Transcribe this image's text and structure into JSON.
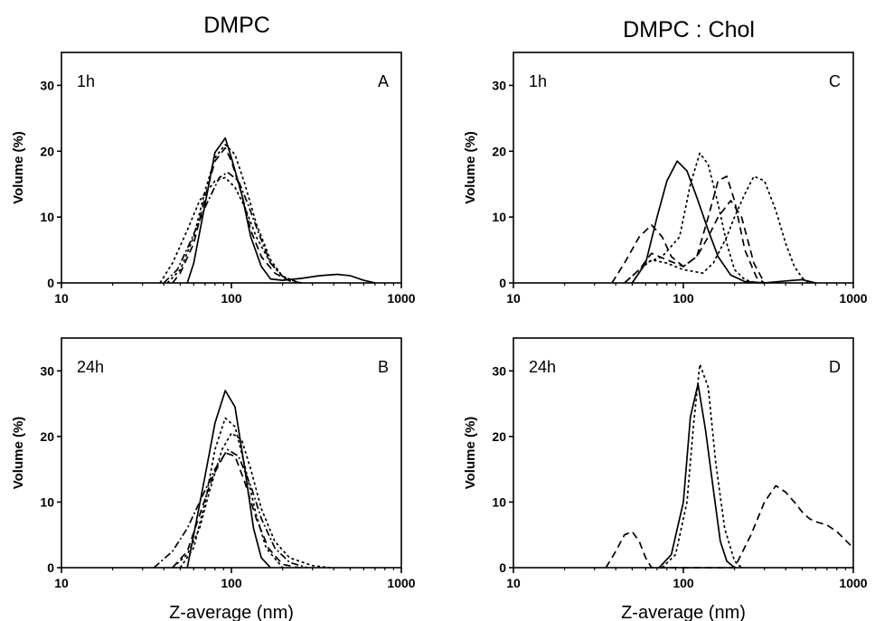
{
  "titles": {
    "left": "DMPC",
    "right": "DMPC : Chol"
  },
  "chart_data": [
    {
      "type": "line",
      "panel": "A",
      "time": "1h",
      "ylabel": "Volume (%)",
      "xlabel": "",
      "xscale": "log",
      "xlim": [
        10,
        1000
      ],
      "ylim": [
        0,
        35
      ],
      "xticks": [
        "10",
        "100",
        "1000"
      ],
      "yticks": [
        "0",
        "10",
        "20",
        "30"
      ],
      "series": [
        {
          "style": "solid",
          "x": [
            55,
            60,
            70,
            80,
            92,
            100,
            115,
            130,
            150,
            170,
            200,
            260,
            330,
            420,
            500,
            600,
            700
          ],
          "y": [
            0,
            3,
            12,
            19.8,
            22,
            19,
            13.5,
            7,
            2.5,
            0.6,
            0.4,
            0.7,
            1.1,
            1.3,
            1.1,
            0.4,
            0
          ]
        },
        {
          "style": "dash",
          "x": [
            45,
            50,
            60,
            70,
            80,
            92,
            100,
            115,
            130,
            150,
            180,
            220,
            260
          ],
          "y": [
            0,
            1.5,
            6,
            13,
            18.5,
            20.5,
            18.5,
            13.5,
            8,
            4,
            1.5,
            0.3,
            0
          ]
        },
        {
          "style": "dot",
          "x": [
            38,
            45,
            55,
            65,
            80,
            92,
            105,
            120,
            140,
            170,
            200,
            250
          ],
          "y": [
            0,
            3,
            8,
            12.5,
            15.5,
            16,
            14.5,
            11.5,
            7,
            3,
            1,
            0
          ]
        },
        {
          "style": "dashdot",
          "x": [
            40,
            48,
            58,
            70,
            85,
            95,
            110,
            125,
            145,
            170,
            200,
            250
          ],
          "y": [
            0,
            2,
            6.5,
            11.5,
            16,
            16.8,
            15.5,
            12,
            7.5,
            3,
            1,
            0
          ]
        },
        {
          "style": "dot",
          "x": [
            42,
            50,
            60,
            70,
            80,
            92,
            105,
            120,
            140,
            170,
            200,
            250
          ],
          "y": [
            0,
            2,
            7,
            14,
            19,
            21,
            19.5,
            15,
            9,
            3.5,
            1,
            0
          ]
        }
      ]
    },
    {
      "type": "line",
      "panel": "B",
      "time": "24h",
      "ylabel": "Volume (%)",
      "xlabel": "Z-average (nm)",
      "xscale": "log",
      "xlim": [
        10,
        1000
      ],
      "ylim": [
        0,
        35
      ],
      "xticks": [
        "10",
        "100",
        "1000"
      ],
      "yticks": [
        "0",
        "10",
        "20",
        "30"
      ],
      "series": [
        {
          "style": "solid",
          "x": [
            55,
            60,
            70,
            80,
            92,
            105,
            120,
            135,
            150,
            170
          ],
          "y": [
            0,
            5,
            14,
            22,
            27,
            24.5,
            15,
            6,
            1.5,
            0
          ]
        },
        {
          "style": "dot",
          "x": [
            50,
            60,
            70,
            80,
            92,
            105,
            120,
            140,
            160,
            200
          ],
          "y": [
            0,
            3,
            10,
            18,
            22.8,
            21.5,
            15.5,
            8,
            3,
            0
          ]
        },
        {
          "style": "dash",
          "x": [
            45,
            55,
            65,
            78,
            92,
            105,
            120,
            140,
            165,
            200,
            250
          ],
          "y": [
            0,
            2.5,
            8,
            14,
            17.5,
            17,
            13,
            7.5,
            3,
            0.5,
            0
          ]
        },
        {
          "style": "dashdot",
          "x": [
            35,
            45,
            55,
            65,
            80,
            95,
            110,
            130,
            150,
            180,
            220,
            280
          ],
          "y": [
            0,
            2.5,
            6,
            10,
            15,
            18,
            17,
            12.5,
            7.5,
            3,
            0.8,
            0
          ]
        },
        {
          "style": "dot",
          "x": [
            45,
            55,
            65,
            75,
            88,
            100,
            115,
            130,
            150,
            180,
            220,
            300,
            380
          ],
          "y": [
            0,
            2,
            6,
            12,
            18,
            20.5,
            19.5,
            15,
            9,
            4,
            1.5,
            0.3,
            0
          ]
        }
      ]
    },
    {
      "type": "line",
      "panel": "C",
      "time": "1h",
      "ylabel": "Volume (%)",
      "xlabel": "",
      "xscale": "log",
      "xlim": [
        10,
        1000
      ],
      "ylim": [
        0,
        35
      ],
      "xticks": [
        "10",
        "100",
        "1000"
      ],
      "yticks": [
        "0",
        "10",
        "20",
        "30"
      ],
      "series": [
        {
          "style": "solid",
          "x": [
            50,
            60,
            70,
            80,
            92,
            105,
            120,
            140,
            160,
            190,
            230,
            300,
            400,
            500,
            600
          ],
          "y": [
            0,
            3,
            10,
            15.5,
            18.5,
            17,
            13,
            8,
            4,
            1.2,
            0.2,
            0,
            0.3,
            0.5,
            0
          ]
        },
        {
          "style": "dot",
          "x": [
            50,
            60,
            75,
            95,
            110,
            125,
            140,
            160,
            180,
            200,
            230,
            270
          ],
          "y": [
            0,
            3,
            4,
            7,
            15,
            19.7,
            18,
            12,
            6,
            2,
            0.5,
            0
          ]
        },
        {
          "style": "dash",
          "x": [
            38,
            45,
            55,
            65,
            75,
            85,
            100,
            120,
            140,
            160,
            180,
            200,
            230,
            270,
            300
          ],
          "y": [
            0,
            3,
            7,
            8.8,
            7,
            4,
            2.5,
            4,
            10,
            15.5,
            16.2,
            12.5,
            5,
            0.8,
            0
          ]
        },
        {
          "style": "dash",
          "x": [
            45,
            55,
            65,
            80,
            100,
            120,
            140,
            160,
            190,
            220,
            260,
            300
          ],
          "y": [
            0,
            2,
            4.5,
            3.5,
            2.5,
            4,
            7,
            10,
            12.5,
            10,
            3,
            0
          ]
        },
        {
          "style": "dot",
          "x": [
            45,
            55,
            65,
            80,
            100,
            130,
            150,
            180,
            200,
            230,
            260,
            300,
            350,
            400,
            450,
            500,
            550
          ],
          "y": [
            0,
            2,
            3.5,
            3,
            2,
            1.5,
            3,
            7,
            10,
            13.5,
            16.2,
            15.5,
            11,
            6,
            2.5,
            0.8,
            0
          ]
        }
      ]
    },
    {
      "type": "line",
      "panel": "D",
      "time": "24h",
      "ylabel": "Volume (%)",
      "xlabel": "Z-average (nm)",
      "xscale": "log",
      "xlim": [
        10,
        1000
      ],
      "ylim": [
        0,
        35
      ],
      "xticks": [
        "10",
        "100",
        "1000"
      ],
      "yticks": [
        "0",
        "10",
        "20",
        "30"
      ],
      "series": [
        {
          "style": "solid",
          "x": [
            72,
            85,
            100,
            110,
            122,
            135,
            150,
            165,
            180,
            200
          ],
          "y": [
            0,
            2,
            10,
            23,
            28,
            21,
            12,
            4,
            1,
            0
          ]
        },
        {
          "style": "dot",
          "x": [
            75,
            90,
            105,
            115,
            125,
            140,
            155,
            175,
            200,
            220
          ],
          "y": [
            0,
            2,
            10,
            22,
            31,
            27.5,
            16,
            6,
            1,
            0
          ]
        },
        {
          "style": "dash",
          "x": [
            35,
            40,
            45,
            50,
            55,
            60,
            65,
            200,
            250,
            300,
            350,
            400,
            450,
            500,
            550,
            600,
            700,
            800,
            1000
          ],
          "y": [
            0,
            2.5,
            5,
            5.5,
            4,
            1.5,
            0,
            0,
            5,
            10,
            12.5,
            11.5,
            10,
            8.5,
            7.5,
            7,
            6.5,
            5.5,
            3
          ]
        }
      ]
    }
  ]
}
